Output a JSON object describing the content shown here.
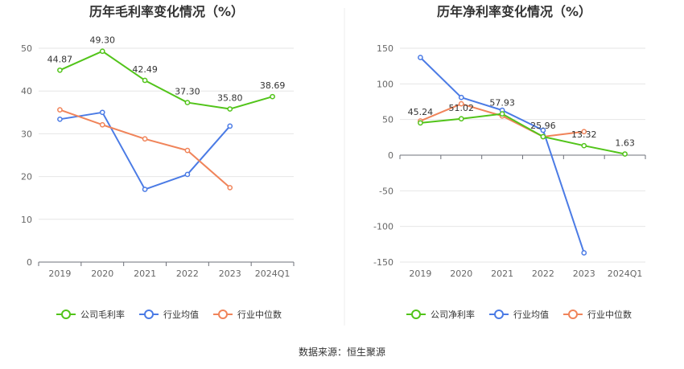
{
  "source": "数据来源：恒生聚源",
  "chart_data": [
    {
      "type": "line",
      "title": "历年毛利率变化情况（%）",
      "categories": [
        "2019",
        "2020",
        "2021",
        "2022",
        "2023",
        "2024Q1"
      ],
      "ylim": [
        0,
        50
      ],
      "yticks": [
        0,
        10,
        20,
        30,
        40,
        50
      ],
      "grid": true,
      "legend_position": "bottom",
      "series": [
        {
          "name": "公司毛利率",
          "color": "#52c41a",
          "labeled": true,
          "values": [
            44.87,
            49.3,
            42.49,
            37.3,
            35.8,
            38.69
          ]
        },
        {
          "name": "行业均值",
          "color": "#4b7be5",
          "labeled": false,
          "values": [
            33.4,
            35.0,
            17.0,
            20.5,
            31.8,
            null
          ]
        },
        {
          "name": "行业中位数",
          "color": "#f0845a",
          "labeled": false,
          "values": [
            35.6,
            32.1,
            28.8,
            26.1,
            17.4,
            null
          ]
        }
      ]
    },
    {
      "type": "line",
      "title": "历年净利率变化情况（%）",
      "categories": [
        "2019",
        "2020",
        "2021",
        "2022",
        "2023",
        "2024Q1"
      ],
      "ylim": [
        -150,
        150
      ],
      "yticks": [
        -150,
        -100,
        -50,
        0,
        50,
        100,
        150
      ],
      "grid": true,
      "legend_position": "bottom",
      "series": [
        {
          "name": "公司净利率",
          "color": "#52c41a",
          "labeled": true,
          "values": [
            45.24,
            51.02,
            57.93,
            25.96,
            13.32,
            1.63
          ]
        },
        {
          "name": "行业均值",
          "color": "#4b7be5",
          "labeled": false,
          "values": [
            137.0,
            81.0,
            63.0,
            35.0,
            -137.0,
            null
          ]
        },
        {
          "name": "行业中位数",
          "color": "#f0845a",
          "labeled": false,
          "values": [
            48.0,
            72.0,
            55.0,
            26.0,
            33.0,
            null
          ]
        }
      ]
    }
  ]
}
